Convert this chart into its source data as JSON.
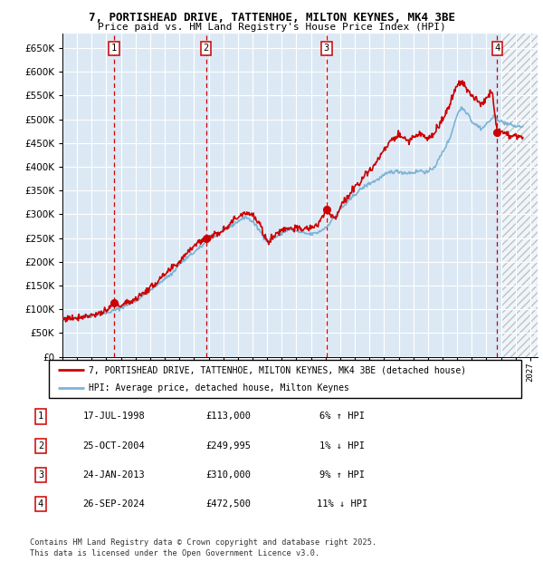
{
  "title_line1": "7, PORTISHEAD DRIVE, TATTENHOE, MILTON KEYNES, MK4 3BE",
  "title_line2": "Price paid vs. HM Land Registry's House Price Index (HPI)",
  "transactions": [
    {
      "num": 1,
      "date": "1998-07-17",
      "price": 113000,
      "pct": "6%",
      "dir": "↑",
      "x_year": 1998.54
    },
    {
      "num": 2,
      "date": "2004-10-25",
      "price": 249995,
      "pct": "1%",
      "dir": "↓",
      "x_year": 2004.82
    },
    {
      "num": 3,
      "date": "2013-01-24",
      "price": 310000,
      "pct": "9%",
      "dir": "↑",
      "x_year": 2013.07
    },
    {
      "num": 4,
      "date": "2024-09-26",
      "price": 472500,
      "pct": "11%",
      "dir": "↓",
      "x_year": 2024.74
    }
  ],
  "legend_line1": "7, PORTISHEAD DRIVE, TATTENHOE, MILTON KEYNES, MK4 3BE (detached house)",
  "legend_line2": "HPI: Average price, detached house, Milton Keynes",
  "table_rows": [
    {
      "num": 1,
      "date_str": "17-JUL-1998",
      "price_str": "£113,000",
      "hpi_str": "6% ↑ HPI"
    },
    {
      "num": 2,
      "date_str": "25-OCT-2004",
      "price_str": "£249,995",
      "hpi_str": "1% ↓ HPI"
    },
    {
      "num": 3,
      "date_str": "24-JAN-2013",
      "price_str": "£310,000",
      "hpi_str": "9% ↑ HPI"
    },
    {
      "num": 4,
      "date_str": "26-SEP-2024",
      "price_str": "£472,500",
      "hpi_str": "11% ↓ HPI"
    }
  ],
  "footer": "Contains HM Land Registry data © Crown copyright and database right 2025.\nThis data is licensed under the Open Government Licence v3.0.",
  "line_color_red": "#cc0000",
  "line_color_blue": "#7eb3d4",
  "bg_color": "#dce9f5",
  "grid_color": "#ffffff",
  "ylim": [
    0,
    680000
  ],
  "yticks": [
    0,
    50000,
    100000,
    150000,
    200000,
    250000,
    300000,
    350000,
    400000,
    450000,
    500000,
    550000,
    600000,
    650000
  ],
  "xlim_start": 1995.0,
  "xlim_end": 2027.5,
  "hatch_start": 2025.0
}
